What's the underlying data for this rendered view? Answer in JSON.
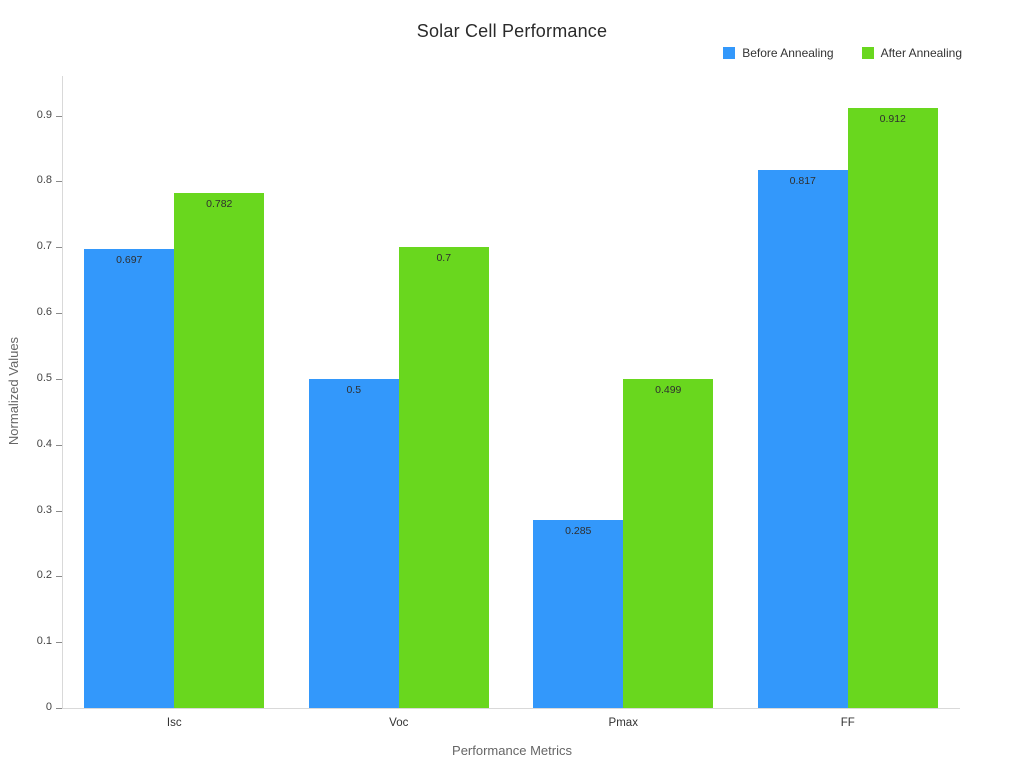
{
  "chart_data": {
    "type": "bar",
    "title": "Solar Cell Performance",
    "xlabel": "Performance Metrics",
    "ylabel": "Normalized Values",
    "categories": [
      "Isc",
      "Voc",
      "Pmax",
      "FF"
    ],
    "series": [
      {
        "name": "Before Annealing",
        "color": "#3398fb",
        "values": [
          0.697,
          0.5,
          0.285,
          0.817
        ],
        "labels": [
          "0.697",
          "0.5",
          "0.285",
          "0.817"
        ]
      },
      {
        "name": "After Annealing",
        "color": "#69d71e",
        "values": [
          0.782,
          0.7,
          0.499,
          0.912
        ],
        "labels": [
          "0.782",
          "0.7",
          "0.499",
          "0.912"
        ]
      }
    ],
    "ylim": [
      0,
      0.96
    ],
    "yticks": [
      0,
      0.1,
      0.2,
      0.3,
      0.4,
      0.5,
      0.6,
      0.7,
      0.8,
      0.9
    ],
    "ytick_labels": [
      "0",
      "0.1",
      "0.2",
      "0.3",
      "0.4",
      "0.5",
      "0.6",
      "0.7",
      "0.8",
      "0.9"
    ],
    "grid": false,
    "legend_position": "top-right"
  }
}
